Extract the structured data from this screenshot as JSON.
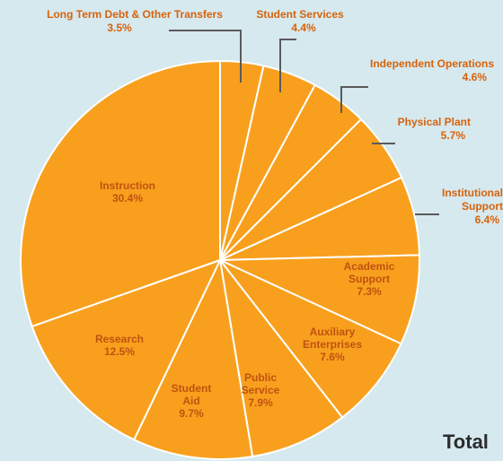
{
  "chart_data": {
    "type": "pie",
    "slices": [
      {
        "label": "Long Term Debt & Other Transfers",
        "value": 3.5,
        "text": "3.5%"
      },
      {
        "label": "Student Services",
        "value": 4.4,
        "text": "4.4%"
      },
      {
        "label": "Independent Operations",
        "value": 4.6,
        "text": "4.6%"
      },
      {
        "label": "Physical Plant",
        "value": 5.7,
        "text": "5.7%"
      },
      {
        "label": "Institutional Support",
        "value": 6.4,
        "text": "6.4%"
      },
      {
        "label": "Academic Support",
        "value": 7.3,
        "text": "7.3%"
      },
      {
        "label": "Auxiliary Enterprises",
        "value": 7.6,
        "text": "7.6%"
      },
      {
        "label": "Public Service",
        "value": 7.9,
        "text": "7.9%"
      },
      {
        "label": "Student Aid",
        "value": 9.7,
        "text": "9.7%"
      },
      {
        "label": "Research",
        "value": 12.5,
        "text": "12.5%"
      },
      {
        "label": "Instruction",
        "value": 30.4,
        "text": "30.4%"
      }
    ],
    "slice_color": "#f8a01e",
    "separator_color": "#ffffff",
    "label_color": "#c0520f",
    "callout_color": "#d8620a",
    "background_color": "#d5e9ef",
    "start_angle_deg": 0,
    "direction": "clockwise"
  },
  "total_label": "Total"
}
